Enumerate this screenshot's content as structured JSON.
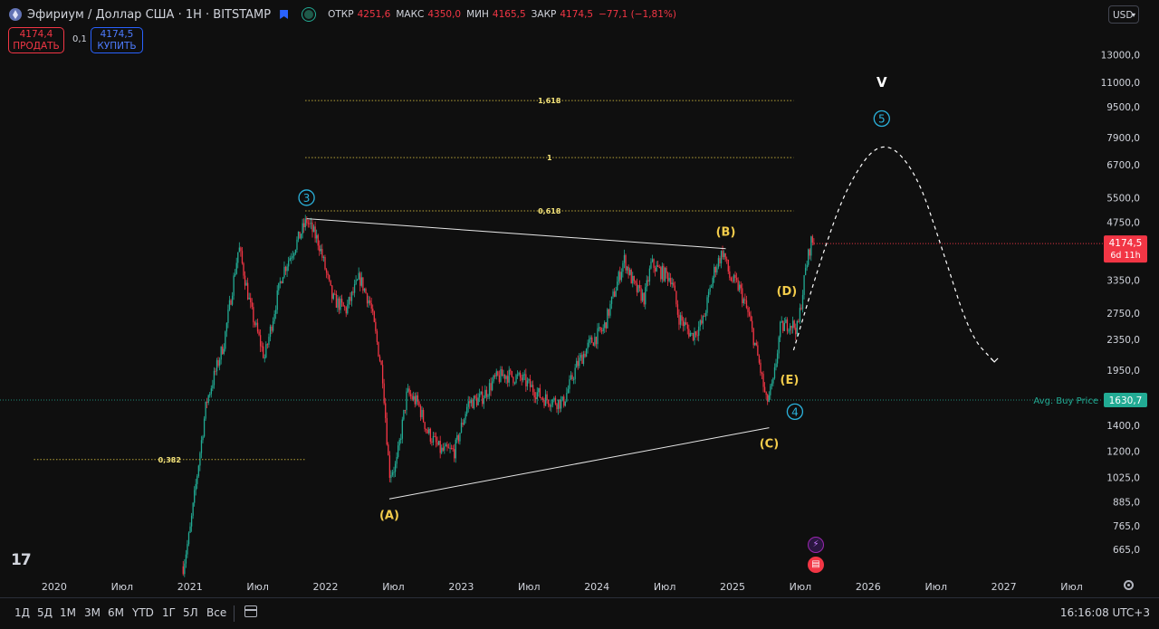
{
  "header": {
    "symbol": "Эфириум / Доллар США · 1Н · BITSTAMP",
    "open_label": "ОТКР",
    "open": "4251,6",
    "high_label": "МАКС",
    "high": "4350,0",
    "low_label": "МИН",
    "low": "4165,5",
    "close_label": "ЗАКР",
    "close": "4174,5",
    "change": "−77,1 (−1,81%)"
  },
  "trade": {
    "sell_price": "4174,4",
    "sell_label": "ПРОДАТЬ",
    "spread": "0,1",
    "buy_price": "4174,5",
    "buy_label": "КУПИТЬ"
  },
  "currency": "USD",
  "price_tag": {
    "price": "4174,5",
    "countdown": "6d 11h",
    "color": "#f23645"
  },
  "avg_buy": {
    "label": "Avg. Buy Price",
    "value": "1630,7",
    "color": "#22ab94"
  },
  "bottom_bar": {
    "ranges": [
      "1Д",
      "5Д",
      "1М",
      "3М",
      "6М",
      "YTD",
      "1Г",
      "5Л",
      "Все"
    ],
    "clock": "16:16:08 UTC+3"
  },
  "logo": "17",
  "colors": {
    "up": "#22ab94",
    "down": "#f23645",
    "annot_yellow": "#f3cc4b",
    "annot_blue": "#2bb3dd"
  },
  "chart_data": {
    "type": "candlestick",
    "y_scale": "log",
    "ylim": [
      580,
      15000
    ],
    "y_ticks": [
      "665,0",
      "765,0",
      "885,0",
      "1025,0",
      "1200,0",
      "1400,0",
      "1650,0",
      "1950,0",
      "2350,0",
      "2750,0",
      "3350,0",
      "4750,0",
      "5500,0",
      "6700,0",
      "7900,0",
      "9500,0",
      "11000,0",
      "13000,0"
    ],
    "x_ticks": [
      "2020",
      "Июл",
      "2021",
      "Июл",
      "2022",
      "Июл",
      "2023",
      "Июл",
      "2024",
      "Июл",
      "2025",
      "Июл",
      "2026",
      "Июл",
      "2027",
      "Июл"
    ],
    "price_path": [
      [
        2020.95,
        600
      ],
      [
        2021.0,
        740
      ],
      [
        2021.12,
        1600
      ],
      [
        2021.25,
        2300
      ],
      [
        2021.36,
        4100
      ],
      [
        2021.45,
        2800
      ],
      [
        2021.55,
        2100
      ],
      [
        2021.68,
        3500
      ],
      [
        2021.8,
        4300
      ],
      [
        2021.86,
        4800
      ],
      [
        2021.95,
        4200
      ],
      [
        2022.05,
        3000
      ],
      [
        2022.15,
        2800
      ],
      [
        2022.25,
        3400
      ],
      [
        2022.33,
        2900
      ],
      [
        2022.42,
        1900
      ],
      [
        2022.47,
        1050
      ],
      [
        2022.52,
        1100
      ],
      [
        2022.6,
        1700
      ],
      [
        2022.68,
        1600
      ],
      [
        2022.75,
        1350
      ],
      [
        2022.85,
        1200
      ],
      [
        2022.95,
        1200
      ],
      [
        2023.05,
        1600
      ],
      [
        2023.15,
        1650
      ],
      [
        2023.25,
        1850
      ],
      [
        2023.32,
        1900
      ],
      [
        2023.45,
        1850
      ],
      [
        2023.6,
        1650
      ],
      [
        2023.75,
        1600
      ],
      [
        2023.85,
        2000
      ],
      [
        2023.95,
        2300
      ],
      [
        2024.05,
        2500
      ],
      [
        2024.15,
        3300
      ],
      [
        2024.2,
        3800
      ],
      [
        2024.28,
        3200
      ],
      [
        2024.35,
        3000
      ],
      [
        2024.4,
        3700
      ],
      [
        2024.48,
        3500
      ],
      [
        2024.55,
        3400
      ],
      [
        2024.6,
        2700
      ],
      [
        2024.7,
        2400
      ],
      [
        2024.78,
        2600
      ],
      [
        2024.87,
        3600
      ],
      [
        2024.93,
        4000
      ],
      [
        2024.98,
        3400
      ],
      [
        2025.05,
        3200
      ],
      [
        2025.12,
        2700
      ],
      [
        2025.2,
        2000
      ],
      [
        2025.25,
        1600
      ],
      [
        2025.3,
        1800
      ],
      [
        2025.35,
        2500
      ],
      [
        2025.42,
        2600
      ],
      [
        2025.48,
        2500
      ],
      [
        2025.54,
        3600
      ],
      [
        2025.58,
        4250
      ],
      [
        2025.6,
        4174.5
      ]
    ],
    "fib_levels": [
      {
        "label": "0,382",
        "price": 1140,
        "x": [
          2019.85,
          2021.85
        ]
      },
      {
        "label": "0,618",
        "price": 5080,
        "x": [
          2021.85,
          2025.45
        ]
      },
      {
        "label": "1",
        "price": 7000,
        "x": [
          2021.85,
          2025.45
        ]
      },
      {
        "label": "1,618",
        "price": 9860,
        "x": [
          2021.85,
          2025.45
        ]
      }
    ],
    "triangle": [
      [
        2021.86,
        4850
      ],
      [
        2024.95,
        4050
      ],
      [
        2022.47,
        900
      ],
      [
        2025.27,
        1380
      ]
    ],
    "wave_labels": [
      {
        "text": "3",
        "x": 2021.86,
        "price": 5500,
        "circle": true,
        "color": "blue"
      },
      {
        "text": "(A)",
        "x": 2022.47,
        "price": 820,
        "circle": false,
        "color": "yellow"
      },
      {
        "text": "(B)",
        "x": 2024.95,
        "price": 4500,
        "circle": false,
        "color": "yellow"
      },
      {
        "text": "(C)",
        "x": 2025.27,
        "price": 1260,
        "circle": false,
        "color": "yellow"
      },
      {
        "text": "(D)",
        "x": 2025.4,
        "price": 3150,
        "circle": false,
        "color": "yellow"
      },
      {
        "text": "(E)",
        "x": 2025.42,
        "price": 1850,
        "circle": false,
        "color": "yellow"
      },
      {
        "text": "4",
        "x": 2025.46,
        "price": 1520,
        "circle": true,
        "color": "blue"
      },
      {
        "text": "5",
        "x": 2026.1,
        "price": 8850,
        "circle": true,
        "color": "blue"
      },
      {
        "text": "V",
        "x": 2026.1,
        "price": 11000,
        "circle": false,
        "color": "white"
      }
    ],
    "projection": [
      [
        2025.45,
        2200
      ],
      [
        2025.65,
        3800
      ],
      [
        2025.85,
        6000
      ],
      [
        2026.1,
        7900
      ],
      [
        2026.35,
        6500
      ],
      [
        2026.55,
        4000
      ],
      [
        2026.75,
        2400
      ],
      [
        2026.93,
        2050
      ]
    ]
  }
}
